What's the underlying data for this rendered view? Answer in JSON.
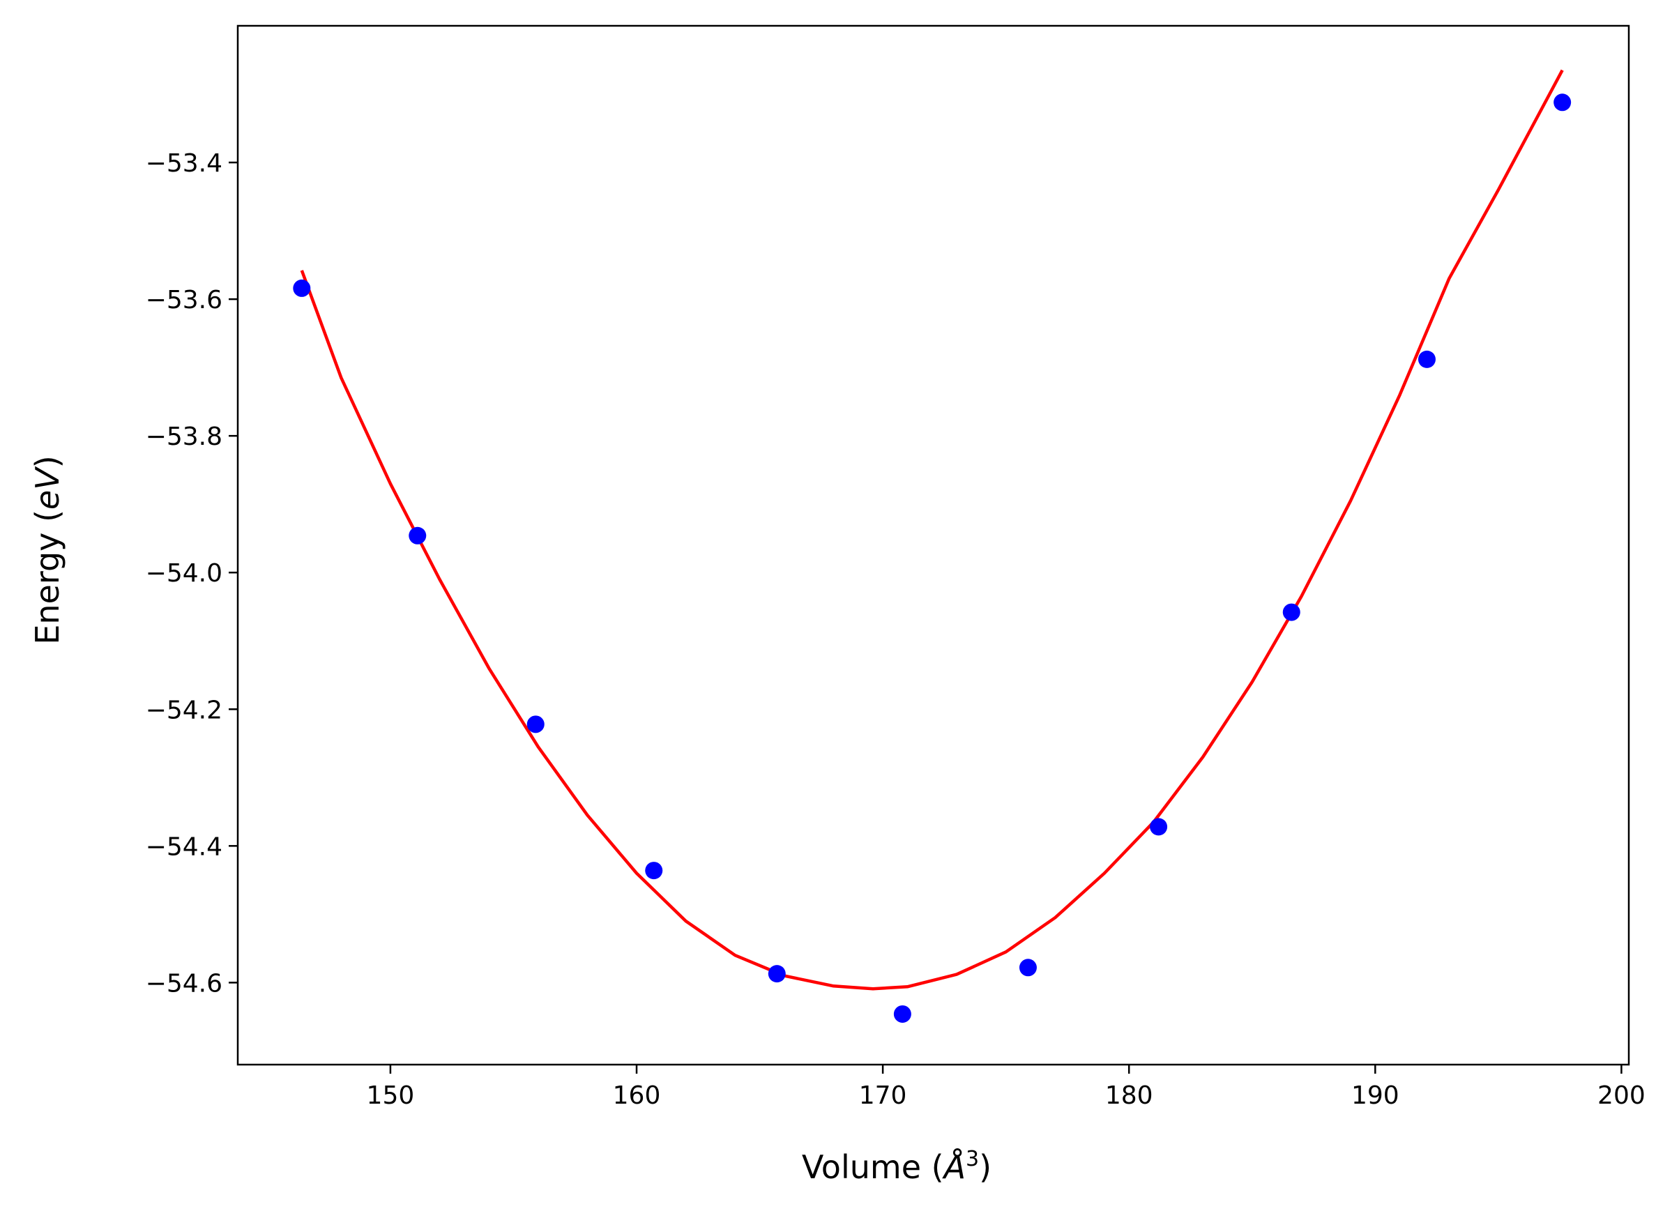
{
  "chart_data": {
    "type": "scatter",
    "xlabel_prefix": "Volume (",
    "xlabel_unit": "Å",
    "xlabel_exp": "3",
    "xlabel_suffix": ")",
    "ylabel_prefix": "Energy (",
    "ylabel_unit": "eV",
    "ylabel_suffix": ")",
    "xlim": [
      143.8,
      200.3
    ],
    "ylim": [
      -54.72,
      -53.2
    ],
    "xticks": [
      {
        "value": 150,
        "label": "150"
      },
      {
        "value": 160,
        "label": "160"
      },
      {
        "value": 170,
        "label": "170"
      },
      {
        "value": 180,
        "label": "180"
      },
      {
        "value": 190,
        "label": "190"
      },
      {
        "value": 200,
        "label": "200"
      }
    ],
    "yticks": [
      {
        "value": -53.4,
        "label": "−53.4"
      },
      {
        "value": -53.6,
        "label": "−53.6"
      },
      {
        "value": -53.8,
        "label": "−53.8"
      },
      {
        "value": -54.0,
        "label": "−54.0"
      },
      {
        "value": -54.2,
        "label": "−54.2"
      },
      {
        "value": -54.4,
        "label": "−54.4"
      },
      {
        "value": -54.6,
        "label": "−54.6"
      }
    ],
    "grid": false,
    "series": [
      {
        "type": "scatter",
        "color": "#0000ff",
        "points": [
          {
            "x": 146.4,
            "y": -53.584
          },
          {
            "x": 151.1,
            "y": -53.946
          },
          {
            "x": 155.9,
            "y": -54.222
          },
          {
            "x": 160.7,
            "y": -54.436
          },
          {
            "x": 165.7,
            "y": -54.587
          },
          {
            "x": 170.8,
            "y": -54.646
          },
          {
            "x": 175.9,
            "y": -54.578
          },
          {
            "x": 181.2,
            "y": -54.372
          },
          {
            "x": 186.6,
            "y": -54.058
          },
          {
            "x": 192.1,
            "y": -53.688
          },
          {
            "x": 197.6,
            "y": -53.312
          }
        ]
      },
      {
        "type": "line",
        "color": "#ff0000",
        "points": [
          {
            "x": 146.4,
            "y": -53.558
          },
          {
            "x": 148.0,
            "y": -53.715
          },
          {
            "x": 150.0,
            "y": -53.87
          },
          {
            "x": 152.0,
            "y": -54.01
          },
          {
            "x": 154.0,
            "y": -54.14
          },
          {
            "x": 156.0,
            "y": -54.255
          },
          {
            "x": 158.0,
            "y": -54.355
          },
          {
            "x": 160.0,
            "y": -54.44
          },
          {
            "x": 162.0,
            "y": -54.51
          },
          {
            "x": 164.0,
            "y": -54.56
          },
          {
            "x": 166.0,
            "y": -54.59
          },
          {
            "x": 168.0,
            "y": -54.605
          },
          {
            "x": 169.6,
            "y": -54.609
          },
          {
            "x": 171.0,
            "y": -54.606
          },
          {
            "x": 173.0,
            "y": -54.588
          },
          {
            "x": 175.0,
            "y": -54.555
          },
          {
            "x": 177.0,
            "y": -54.505
          },
          {
            "x": 179.0,
            "y": -54.44
          },
          {
            "x": 181.0,
            "y": -54.365
          },
          {
            "x": 183.0,
            "y": -54.27
          },
          {
            "x": 185.0,
            "y": -54.16
          },
          {
            "x": 187.0,
            "y": -54.035
          },
          {
            "x": 189.0,
            "y": -53.895
          },
          {
            "x": 191.0,
            "y": -53.74
          },
          {
            "x": 193.0,
            "y": -53.57
          },
          {
            "x": 195.0,
            "y": -53.44
          },
          {
            "x": 197.6,
            "y": -53.265
          }
        ]
      }
    ]
  }
}
